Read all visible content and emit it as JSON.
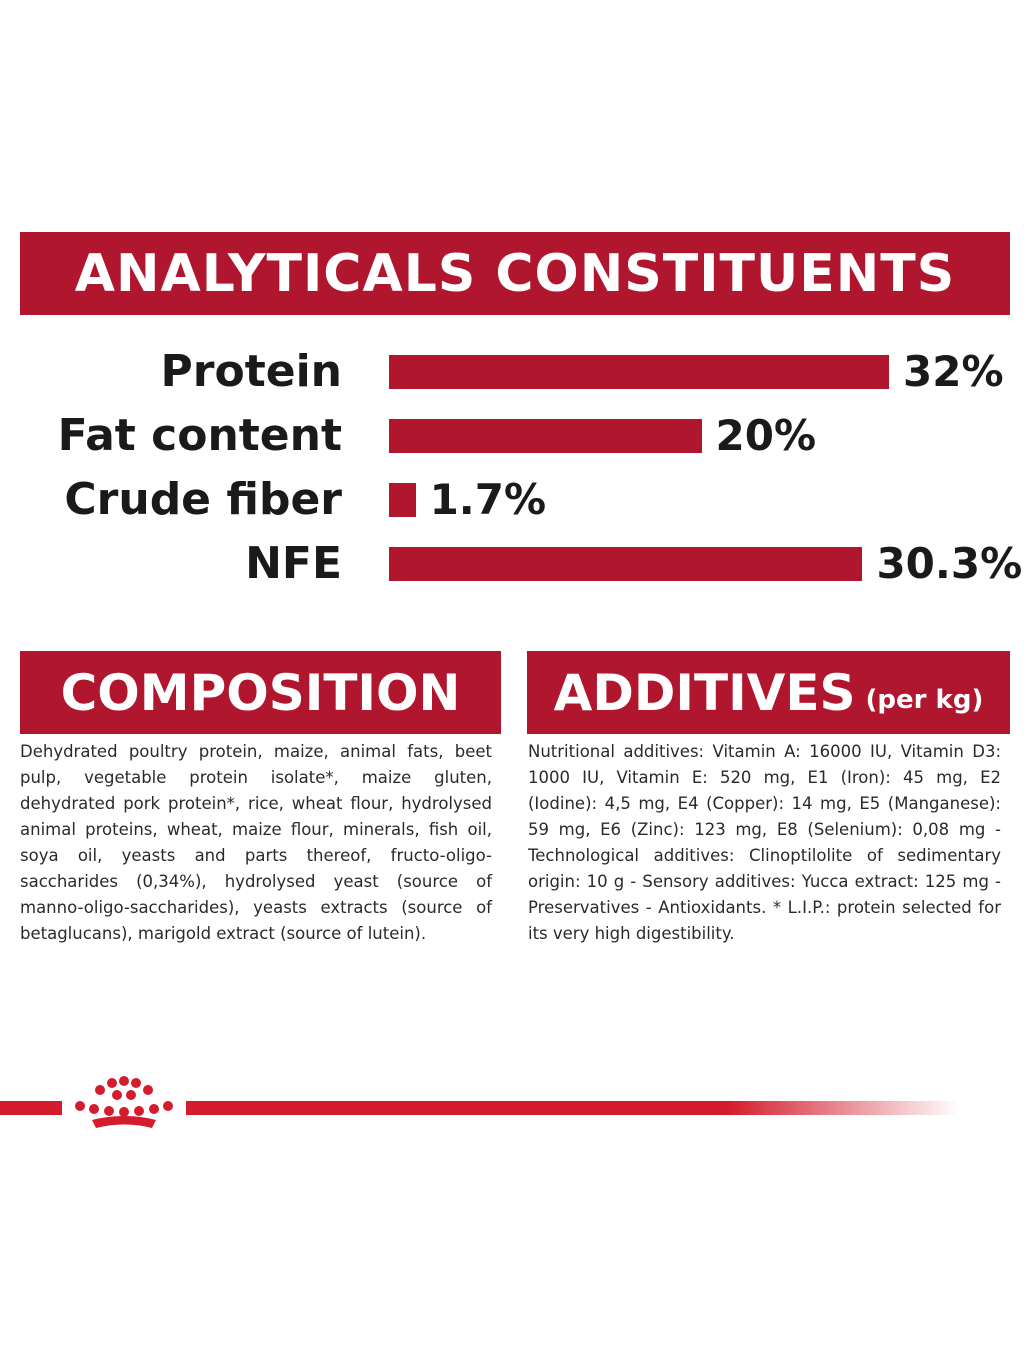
{
  "analytics": {
    "title": "ANALYTICALS CONSTITUENTS",
    "rows": [
      {
        "label": "Protein",
        "value_text": "32%",
        "value": 32
      },
      {
        "label": "Fat content",
        "value_text": "20%",
        "value": 20
      },
      {
        "label": "Crude fiber",
        "value_text": "1.7%",
        "value": 1.7
      },
      {
        "label": "NFE",
        "value_text": "30.3%",
        "value": 30.3
      }
    ],
    "bar_color": "#b0172e"
  },
  "composition": {
    "title": "COMPOSITION",
    "text": "Dehydrated poultry protein, maize, animal fats, beet pulp, vegetable protein isolate*, maize gluten, dehydrated pork protein*, rice, wheat flour, hydrolysed animal proteins, wheat, maize flour, minerals, fish oil, soya oil, yeasts and parts thereof, fructo-oligo-saccharides (0,34%), hydrolysed yeast (source of manno-oligo-saccharides), yeasts extracts (source of betaglucans), marigold extract (source of lutein)."
  },
  "additives": {
    "title": "ADDITIVES",
    "title_suffix": "(per kg)",
    "text": "Nutritional additives: Vitamin A: 16000 IU, Vitamin D3: 1000 IU, Vitamin E: 520 mg, E1 (Iron): 45 mg, E2 (Iodine): 4,5 mg, E4 (Copper): 14 mg, E5 (Manganese): 59 mg, E6 (Zinc): 123 mg, E8 (Selenium): 0,08 mg - Technological additives: Clinoptilolite of sedimentary origin: 10 g - Sensory additives: Yucca extract: 125 mg - Preservatives - Antioxidants. * L.I.P.: protein selected for its very high digestibility."
  },
  "footer": {
    "logo_icon": "crown-icon",
    "brand_color": "#d41c2c"
  }
}
